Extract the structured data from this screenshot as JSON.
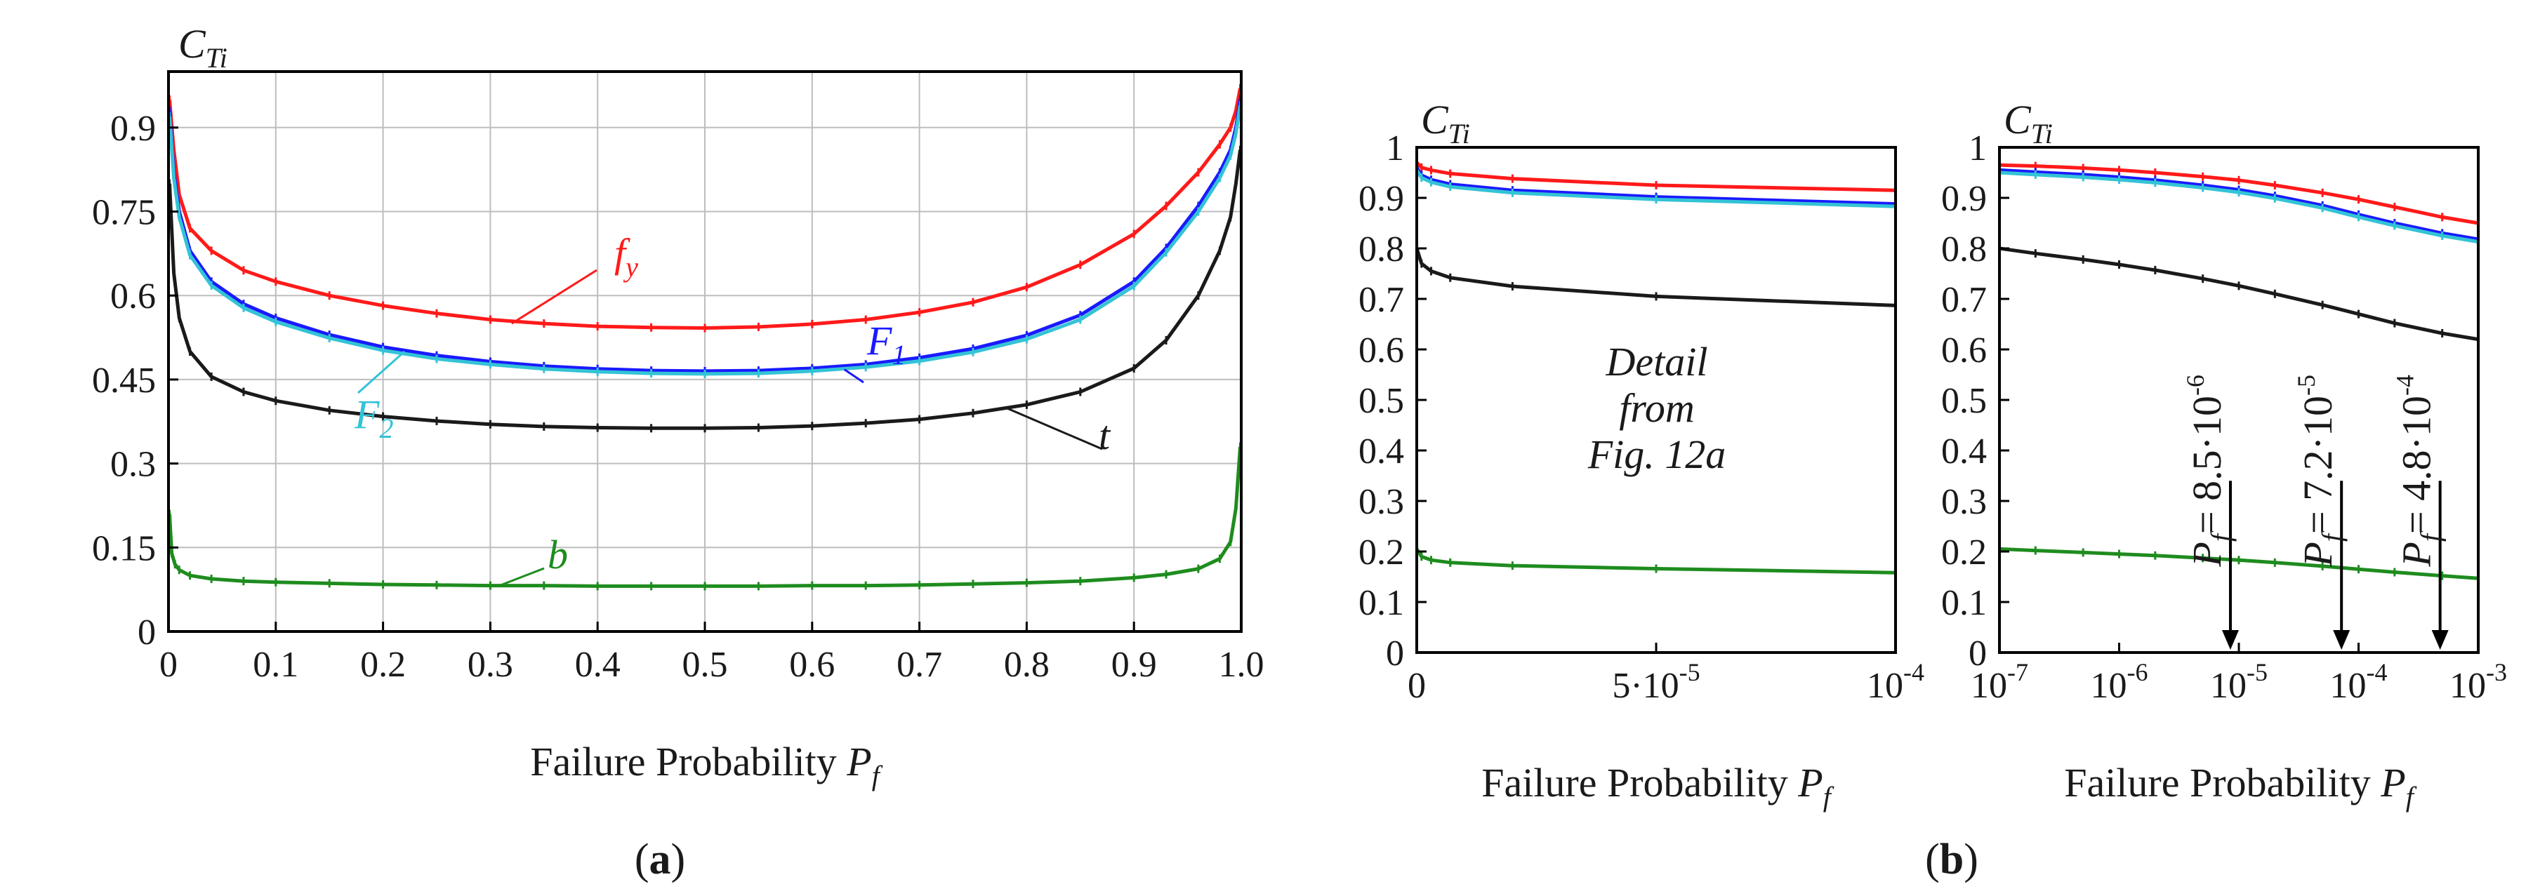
{
  "colors": {
    "fy": "#ff1a1a",
    "F1": "#1a1aff",
    "F2": "#33c3d6",
    "t": "#1a1a1a",
    "b": "#1e8c1e",
    "grid": "#bdbdbd"
  },
  "chart_data": [
    {
      "id": "a",
      "type": "line",
      "panel_label_open": "(",
      "panel_label": "a",
      "panel_label_close": ")",
      "ylabel_main": "C",
      "ylabel_sub": "Ti",
      "xlabel": "Failure Probability ",
      "xlabel_var": "P",
      "xlabel_sub": "f",
      "xlim": [
        0,
        1
      ],
      "ylim": [
        0,
        1
      ],
      "grid": true,
      "xticks": [
        {
          "v": 0,
          "label": "0"
        },
        {
          "v": 0.1,
          "label": "0.1"
        },
        {
          "v": 0.2,
          "label": "0.2"
        },
        {
          "v": 0.3,
          "label": "0.3"
        },
        {
          "v": 0.4,
          "label": "0.4"
        },
        {
          "v": 0.5,
          "label": "0.5"
        },
        {
          "v": 0.6,
          "label": "0.6"
        },
        {
          "v": 0.7,
          "label": "0.7"
        },
        {
          "v": 0.8,
          "label": "0.8"
        },
        {
          "v": 0.9,
          "label": "0.9"
        },
        {
          "v": 1.0,
          "label": "1.0"
        }
      ],
      "yticks": [
        {
          "v": 0,
          "label": "0"
        },
        {
          "v": 0.15,
          "label": "0.15"
        },
        {
          "v": 0.3,
          "label": "0.3"
        },
        {
          "v": 0.45,
          "label": "0.45"
        },
        {
          "v": 0.6,
          "label": "0.6"
        },
        {
          "v": 0.75,
          "label": "0.75"
        },
        {
          "v": 0.9,
          "label": "0.9"
        }
      ],
      "series": [
        {
          "name": "fy",
          "label_main": "f",
          "label_sub": "y",
          "color": "#ff1a1a",
          "x": [
            0.001,
            0.005,
            0.01,
            0.02,
            0.04,
            0.07,
            0.1,
            0.15,
            0.2,
            0.25,
            0.3,
            0.35,
            0.4,
            0.45,
            0.5,
            0.55,
            0.6,
            0.65,
            0.7,
            0.75,
            0.8,
            0.85,
            0.9,
            0.93,
            0.96,
            0.98,
            0.99,
            0.995,
            0.999
          ],
          "y": [
            0.95,
            0.86,
            0.78,
            0.72,
            0.68,
            0.645,
            0.625,
            0.6,
            0.582,
            0.568,
            0.557,
            0.55,
            0.545,
            0.543,
            0.542,
            0.544,
            0.549,
            0.557,
            0.57,
            0.588,
            0.615,
            0.655,
            0.71,
            0.76,
            0.82,
            0.87,
            0.9,
            0.93,
            0.97
          ]
        },
        {
          "name": "F1",
          "label_main": "F",
          "label_sub": "1",
          "color": "#1a1aff",
          "x": [
            0.001,
            0.005,
            0.01,
            0.02,
            0.04,
            0.07,
            0.1,
            0.15,
            0.2,
            0.25,
            0.3,
            0.35,
            0.4,
            0.45,
            0.5,
            0.55,
            0.6,
            0.65,
            0.7,
            0.75,
            0.8,
            0.85,
            0.9,
            0.93,
            0.96,
            0.98,
            0.99,
            0.995,
            0.999
          ],
          "y": [
            0.93,
            0.82,
            0.75,
            0.68,
            0.625,
            0.585,
            0.56,
            0.53,
            0.508,
            0.493,
            0.482,
            0.474,
            0.469,
            0.466,
            0.465,
            0.466,
            0.47,
            0.477,
            0.489,
            0.505,
            0.529,
            0.565,
            0.625,
            0.685,
            0.76,
            0.82,
            0.86,
            0.9,
            0.95
          ]
        },
        {
          "name": "F2",
          "label_main": "F",
          "label_sub": "2",
          "color": "#33c3d6",
          "x": [
            0.001,
            0.005,
            0.01,
            0.02,
            0.04,
            0.07,
            0.1,
            0.15,
            0.2,
            0.25,
            0.3,
            0.35,
            0.4,
            0.45,
            0.5,
            0.55,
            0.6,
            0.65,
            0.7,
            0.75,
            0.8,
            0.85,
            0.9,
            0.93,
            0.96,
            0.98,
            0.99,
            0.995,
            0.999
          ],
          "y": [
            0.92,
            0.81,
            0.74,
            0.672,
            0.618,
            0.578,
            0.553,
            0.524,
            0.502,
            0.487,
            0.477,
            0.469,
            0.464,
            0.461,
            0.46,
            0.461,
            0.465,
            0.472,
            0.483,
            0.499,
            0.522,
            0.557,
            0.617,
            0.677,
            0.75,
            0.81,
            0.85,
            0.89,
            0.94
          ]
        },
        {
          "name": "t",
          "label_main": "t",
          "label_sub": "",
          "color": "#1a1a1a",
          "x": [
            0.001,
            0.005,
            0.01,
            0.02,
            0.04,
            0.07,
            0.1,
            0.15,
            0.2,
            0.25,
            0.3,
            0.35,
            0.4,
            0.45,
            0.5,
            0.55,
            0.6,
            0.65,
            0.7,
            0.75,
            0.8,
            0.85,
            0.9,
            0.93,
            0.96,
            0.98,
            0.99,
            0.995,
            0.999
          ],
          "y": [
            0.8,
            0.64,
            0.56,
            0.5,
            0.455,
            0.428,
            0.412,
            0.395,
            0.384,
            0.376,
            0.37,
            0.366,
            0.364,
            0.363,
            0.363,
            0.364,
            0.367,
            0.372,
            0.379,
            0.39,
            0.405,
            0.428,
            0.47,
            0.52,
            0.6,
            0.68,
            0.74,
            0.8,
            0.86
          ]
        },
        {
          "name": "b",
          "label_main": "b",
          "label_sub": "",
          "color": "#1e8c1e",
          "x": [
            0.001,
            0.003,
            0.006,
            0.01,
            0.02,
            0.04,
            0.07,
            0.1,
            0.15,
            0.2,
            0.25,
            0.3,
            0.35,
            0.4,
            0.45,
            0.5,
            0.55,
            0.6,
            0.65,
            0.7,
            0.75,
            0.8,
            0.85,
            0.9,
            0.93,
            0.96,
            0.98,
            0.99,
            0.995,
            0.999
          ],
          "y": [
            0.21,
            0.14,
            0.12,
            0.11,
            0.1,
            0.094,
            0.09,
            0.088,
            0.086,
            0.084,
            0.083,
            0.082,
            0.082,
            0.081,
            0.081,
            0.081,
            0.081,
            0.082,
            0.082,
            0.083,
            0.085,
            0.087,
            0.09,
            0.096,
            0.102,
            0.112,
            0.13,
            0.16,
            0.22,
            0.33
          ]
        }
      ]
    },
    {
      "id": "b-linear",
      "type": "line",
      "panel_label_open": "(",
      "panel_label": "b",
      "panel_label_close": ")",
      "ylabel_main": "C",
      "ylabel_sub": "Ti",
      "xlabel": "Failure Probability ",
      "xlabel_var": "P",
      "xlabel_sub": "f",
      "annotation": [
        "Detail",
        "from",
        "Fig. 12a"
      ],
      "xlim": [
        0,
        0.0001
      ],
      "ylim": [
        0,
        1
      ],
      "grid": false,
      "xticks": [
        {
          "v": 0,
          "label": "0",
          "sup": ""
        },
        {
          "v": 5e-05,
          "label": "5·10",
          "sup": "-5"
        },
        {
          "v": 0.0001,
          "label": "10",
          "sup": "-4"
        }
      ],
      "yticks": [
        {
          "v": 0,
          "label": "0"
        },
        {
          "v": 0.1,
          "label": "0.1"
        },
        {
          "v": 0.2,
          "label": "0.2"
        },
        {
          "v": 0.3,
          "label": "0.3"
        },
        {
          "v": 0.4,
          "label": "0.4"
        },
        {
          "v": 0.5,
          "label": "0.5"
        },
        {
          "v": 0.6,
          "label": "0.6"
        },
        {
          "v": 0.7,
          "label": "0.7"
        },
        {
          "v": 0.8,
          "label": "0.8"
        },
        {
          "v": 0.9,
          "label": "0.9"
        },
        {
          "v": 1,
          "label": "1"
        }
      ],
      "series": [
        {
          "name": "fy",
          "color": "#ff1a1a",
          "x": [
            0,
            1e-06,
            3e-06,
            7e-06,
            2e-05,
            5e-05,
            0.0001
          ],
          "y": [
            0.97,
            0.96,
            0.955,
            0.948,
            0.938,
            0.925,
            0.915
          ]
        },
        {
          "name": "F1",
          "color": "#1a1aff",
          "x": [
            0,
            1e-06,
            3e-06,
            7e-06,
            2e-05,
            5e-05,
            0.0001
          ],
          "y": [
            0.96,
            0.945,
            0.936,
            0.927,
            0.915,
            0.902,
            0.888
          ]
        },
        {
          "name": "F2",
          "color": "#33c3d6",
          "x": [
            0,
            1e-06,
            3e-06,
            7e-06,
            2e-05,
            5e-05,
            0.0001
          ],
          "y": [
            0.955,
            0.94,
            0.931,
            0.922,
            0.91,
            0.897,
            0.883
          ]
        },
        {
          "name": "t",
          "color": "#1a1a1a",
          "x": [
            0,
            1e-06,
            3e-06,
            7e-06,
            2e-05,
            5e-05,
            0.0001
          ],
          "y": [
            0.8,
            0.77,
            0.755,
            0.742,
            0.725,
            0.705,
            0.687
          ]
        },
        {
          "name": "b",
          "color": "#1e8c1e",
          "x": [
            0,
            1e-06,
            3e-06,
            7e-06,
            2e-05,
            5e-05,
            0.0001
          ],
          "y": [
            0.205,
            0.19,
            0.183,
            0.178,
            0.172,
            0.166,
            0.158
          ]
        }
      ]
    },
    {
      "id": "b-log",
      "type": "line",
      "ylabel_main": "C",
      "ylabel_sub": "Ti",
      "xlabel": "Failure Probability ",
      "xlabel_var": "P",
      "xlabel_sub": "f",
      "xscale": "log",
      "xlim": [
        1e-07,
        0.001
      ],
      "ylim": [
        0,
        1
      ],
      "grid": false,
      "xticks": [
        {
          "v": 1e-07,
          "label": "10",
          "sup": "-7"
        },
        {
          "v": 1e-06,
          "label": "10",
          "sup": "-6"
        },
        {
          "v": 1e-05,
          "label": "10",
          "sup": "-5"
        },
        {
          "v": 0.0001,
          "label": "10",
          "sup": "-4"
        },
        {
          "v": 0.001,
          "label": "10",
          "sup": "-3"
        }
      ],
      "yticks": [
        {
          "v": 0,
          "label": "0"
        },
        {
          "v": 0.1,
          "label": "0.1"
        },
        {
          "v": 0.2,
          "label": "0.2"
        },
        {
          "v": 0.3,
          "label": "0.3"
        },
        {
          "v": 0.4,
          "label": "0.4"
        },
        {
          "v": 0.5,
          "label": "0.5"
        },
        {
          "v": 0.6,
          "label": "0.6"
        },
        {
          "v": 0.7,
          "label": "0.7"
        },
        {
          "v": 0.8,
          "label": "0.8"
        },
        {
          "v": 0.9,
          "label": "0.9"
        },
        {
          "v": 1,
          "label": "1"
        }
      ],
      "markers": [
        {
          "x": 8.5e-06,
          "label_var": "P",
          "label_sub": "f",
          "label_eq": "= 8.5·10",
          "label_sup": "-6"
        },
        {
          "x": 7.2e-05,
          "label_var": "P",
          "label_sub": "f",
          "label_eq": "= 7.2·10",
          "label_sup": "-5"
        },
        {
          "x": 0.00048,
          "label_var": "P",
          "label_sub": "f",
          "label_eq": "= 4.8·10",
          "label_sup": "-4"
        }
      ],
      "series": [
        {
          "name": "fy",
          "color": "#ff1a1a",
          "x": [
            1e-07,
            2e-07,
            5e-07,
            1e-06,
            2e-06,
            5e-06,
            1e-05,
            2e-05,
            5e-05,
            0.0001,
            0.0002,
            0.0005,
            0.001
          ],
          "y": [
            0.965,
            0.963,
            0.959,
            0.955,
            0.95,
            0.942,
            0.935,
            0.925,
            0.91,
            0.897,
            0.882,
            0.862,
            0.85
          ]
        },
        {
          "name": "F1",
          "color": "#1a1aff",
          "x": [
            1e-07,
            2e-07,
            5e-07,
            1e-06,
            2e-06,
            5e-06,
            1e-05,
            2e-05,
            5e-05,
            0.0001,
            0.0002,
            0.0005,
            0.001
          ],
          "y": [
            0.955,
            0.951,
            0.946,
            0.941,
            0.935,
            0.925,
            0.916,
            0.904,
            0.885,
            0.867,
            0.85,
            0.83,
            0.818
          ]
        },
        {
          "name": "F2",
          "color": "#33c3d6",
          "x": [
            1e-07,
            2e-07,
            5e-07,
            1e-06,
            2e-06,
            5e-06,
            1e-05,
            2e-05,
            5e-05,
            0.0001,
            0.0002,
            0.0005,
            0.001
          ],
          "y": [
            0.95,
            0.946,
            0.941,
            0.936,
            0.93,
            0.92,
            0.911,
            0.899,
            0.88,
            0.862,
            0.845,
            0.825,
            0.813
          ]
        },
        {
          "name": "t",
          "color": "#1a1a1a",
          "x": [
            1e-07,
            2e-07,
            5e-07,
            1e-06,
            2e-06,
            5e-06,
            1e-05,
            2e-05,
            5e-05,
            0.0001,
            0.0002,
            0.0005,
            0.001
          ],
          "y": [
            0.8,
            0.79,
            0.778,
            0.768,
            0.757,
            0.74,
            0.726,
            0.71,
            0.688,
            0.67,
            0.652,
            0.632,
            0.62
          ]
        },
        {
          "name": "b",
          "color": "#1e8c1e",
          "x": [
            1e-07,
            2e-07,
            5e-07,
            1e-06,
            2e-06,
            5e-06,
            1e-05,
            2e-05,
            5e-05,
            0.0001,
            0.0002,
            0.0005,
            0.001
          ],
          "y": [
            0.205,
            0.202,
            0.198,
            0.195,
            0.192,
            0.187,
            0.183,
            0.178,
            0.171,
            0.165,
            0.159,
            0.152,
            0.147
          ]
        }
      ]
    }
  ]
}
